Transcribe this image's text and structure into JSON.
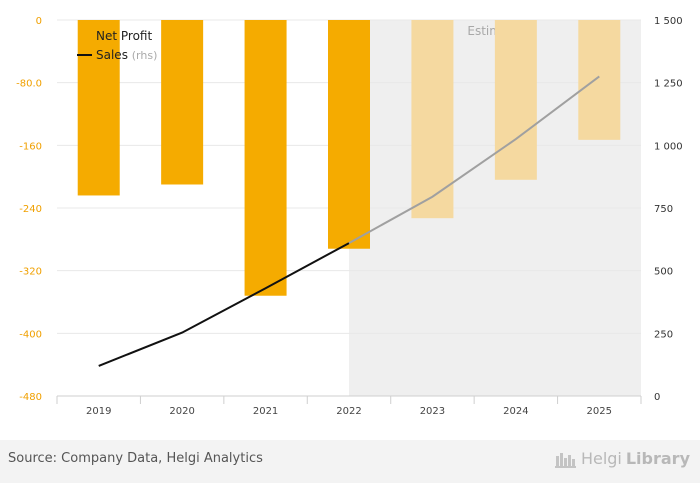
{
  "chart_data": {
    "type": "bar",
    "categories": [
      "2019",
      "2020",
      "2021",
      "2022",
      "2023",
      "2024",
      "2025"
    ],
    "series": [
      {
        "name": "Net Profit",
        "type": "bar",
        "axis": "left",
        "values": [
          -224,
          -210,
          -352,
          -292,
          -253,
          -204,
          -153
        ],
        "estimate_from_index": 4
      },
      {
        "name": "Sales",
        "legend_suffix": "(rhs)",
        "type": "line",
        "axis": "right",
        "values": [
          120,
          253,
          430,
          610,
          795,
          1025,
          1275
        ],
        "estimate_from_index": 3
      }
    ],
    "left_axis": {
      "ylim": [
        -480,
        0
      ],
      "ticks": [
        0,
        -80,
        -160,
        -240,
        -320,
        -400,
        -480
      ],
      "tick_labels": [
        "0",
        "-80.0",
        "-160",
        "-240",
        "-320",
        "-400",
        "-480"
      ]
    },
    "right_axis": {
      "ylim": [
        0,
        1500
      ],
      "ticks": [
        0,
        250,
        500,
        750,
        1000,
        1250,
        1500
      ],
      "tick_labels": [
        "0",
        "250",
        "500",
        "750",
        "1 000",
        "1 250",
        "1 500"
      ]
    },
    "estimates_label": "Estimates",
    "grid": true,
    "legend_position": "top-left",
    "colors": {
      "bar": "#f5ab00",
      "bar_estimate": "#f5d9a0",
      "line": "#111111",
      "line_estimate": "#a0a0a0",
      "estimate_band": "#efefef",
      "left_tick": "#f0a000",
      "right_tick": "#333333",
      "grid": "#e8e8e8"
    }
  },
  "footer": {
    "source": "Source: Company Data, Helgi Analytics",
    "brand_part1": "Helgi",
    "brand_part2": "Library"
  }
}
